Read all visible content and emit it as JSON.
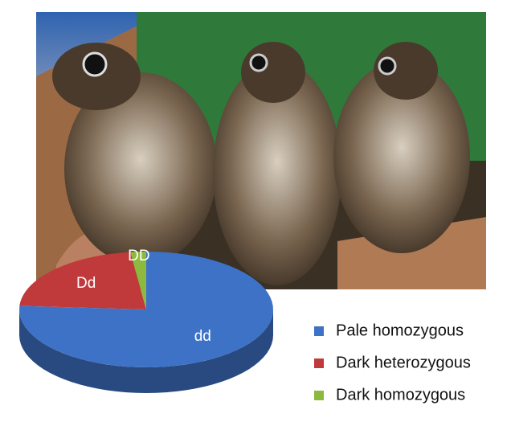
{
  "chart_data": {
    "type": "pie",
    "series": [
      {
        "name": "Pale homozygous",
        "label": "dd",
        "color": "#3d72c6",
        "value": 76
      },
      {
        "name": "Dark heterozygous",
        "label": "Dd",
        "color": "#c0393b",
        "value": 22
      },
      {
        "name": "Dark homozygous",
        "label": "DD",
        "color": "#8dba3e",
        "value": 2
      }
    ]
  }
}
